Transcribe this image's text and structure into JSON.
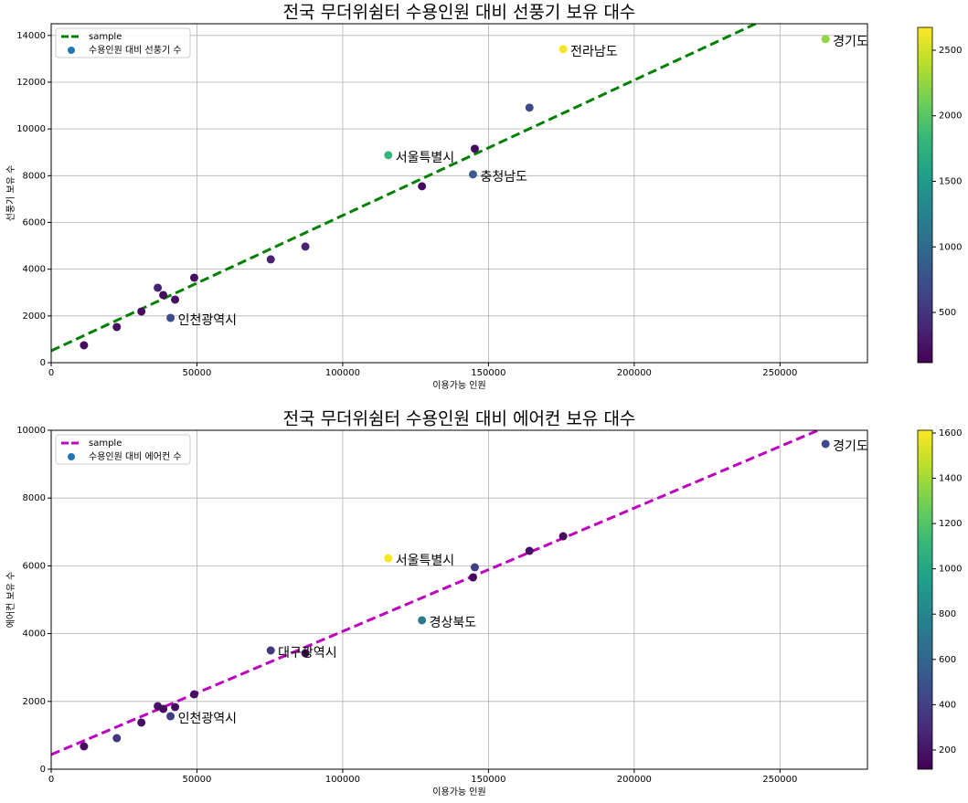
{
  "chart_data": [
    {
      "type": "scatter",
      "title": "전국 무더위쉼터 수용인원 대비 선풍기 보유 대수",
      "x_label": "이용가능 인원",
      "y_label": "선풍기 보유 수",
      "xlim": [
        0,
        280000
      ],
      "xticks": [
        0,
        50000,
        100000,
        150000,
        200000,
        250000
      ],
      "ylim": [
        0,
        14500
      ],
      "yticks": [
        0,
        2000,
        4000,
        6000,
        8000,
        10000,
        12000,
        14000
      ],
      "grid": true,
      "legend": "upper left",
      "colormap": "viridis",
      "clim": [
        117,
        2674
      ],
      "cticks": [
        500,
        1000,
        1500,
        2000,
        2500
      ],
      "series": [
        {
          "name": "sample",
          "type": "line",
          "color": "#008000",
          "x": [
            0,
            280000
          ],
          "values": [
            508,
            16720
          ]
        },
        {
          "name": "수용인원 대비 선풍기 수",
          "type": "scatter",
          "color": "#1f77b4",
          "x": [
            11250,
            22500,
            30940,
            36560,
            38440,
            40940,
            42500,
            49060,
            75310,
            87190,
            115625,
            127190,
            144690,
            145310,
            164060,
            175625,
            265625
          ],
          "values": [
            743,
            1525,
            2190,
            3207,
            2894,
            1916,
            2698,
            3637,
            4419,
            4967,
            8877,
            7548,
            8056,
            9151,
            10911,
            13414,
            13844
          ],
          "c": [
            200,
            200,
            200,
            350,
            200,
            700,
            200,
            200,
            350,
            350,
            1800,
            200,
            850,
            200,
            700,
            2650,
            2250
          ],
          "labels": [
            null,
            null,
            null,
            null,
            null,
            "인천광역시",
            null,
            null,
            null,
            null,
            "서울특별시",
            null,
            "충청남도",
            null,
            null,
            "전라남도",
            "경기도"
          ]
        }
      ]
    },
    {
      "type": "scatter",
      "title": "전국 무더위쉼터 수용인원 대비 에어컨 보유 대수",
      "x_label": "이용가능 인원",
      "y_label": "에어컨 보유 수",
      "xlim": [
        0,
        280000
      ],
      "xticks": [
        0,
        50000,
        100000,
        150000,
        200000,
        250000
      ],
      "ylim": [
        0,
        10000
      ],
      "yticks": [
        0,
        2000,
        4000,
        6000,
        8000,
        10000
      ],
      "grid": true,
      "legend": "upper left",
      "colormap": "viridis",
      "clim": [
        115,
        1612
      ],
      "cticks": [
        200,
        400,
        600,
        800,
        1000,
        1200,
        1400,
        1600
      ],
      "series": [
        {
          "name": "sample",
          "type": "line",
          "color": "#bf00bf",
          "x": [
            0,
            280000
          ],
          "values": [
            431,
            10614
          ]
        },
        {
          "name": "수용인원 대비 에어컨 수",
          "type": "scatter",
          "color": "#1f77b4",
          "x": [
            11250,
            22500,
            30940,
            36560,
            38440,
            40940,
            42500,
            49060,
            75310,
            87190,
            115625,
            127190,
            144690,
            145310,
            164060,
            175625,
            265625
          ],
          "values": [
            674,
            916,
            1375,
            1860,
            1779,
            1563,
            1833,
            2210,
            3504,
            3423,
            6226,
            4394,
            5660,
            5957,
            6442,
            6873,
            9596
          ],
          "c": [
            160,
            350,
            180,
            200,
            160,
            380,
            180,
            170,
            360,
            160,
            1600,
            720,
            160,
            400,
            170,
            160,
            450
          ],
          "labels": [
            null,
            null,
            null,
            null,
            null,
            "인천광역시",
            null,
            null,
            "대구광역시",
            null,
            "서울특별시",
            "경상북도",
            null,
            null,
            null,
            null,
            "경기도"
          ]
        }
      ]
    }
  ]
}
